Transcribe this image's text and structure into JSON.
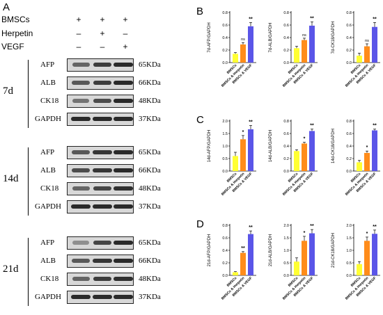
{
  "panel_labels": {
    "a": "A",
    "b": "B",
    "c": "C",
    "d": "D"
  },
  "treatments": [
    {
      "name": "BMSCs",
      "signs": [
        "+",
        "+",
        "+"
      ]
    },
    {
      "name": "Herpetin",
      "signs": [
        "–",
        "+",
        "–"
      ]
    },
    {
      "name": "VEGF",
      "signs": [
        "–",
        "–",
        "+"
      ]
    }
  ],
  "blot_groups": [
    {
      "day": "7d",
      "rows": [
        {
          "protein": "AFP",
          "kda": "65KDa",
          "intensity": [
            0.5,
            0.8,
            0.95
          ]
        },
        {
          "protein": "ALB",
          "kda": "66KDa",
          "intensity": [
            0.6,
            0.8,
            0.95
          ]
        },
        {
          "protein": "CK18",
          "kda": "48KDa",
          "intensity": [
            0.4,
            0.7,
            0.95
          ]
        },
        {
          "protein": "GAPDH",
          "kda": "37KDa",
          "intensity": [
            0.95,
            0.95,
            0.95
          ]
        }
      ]
    },
    {
      "day": "14d",
      "rows": [
        {
          "protein": "AFP",
          "kda": "65KDa",
          "intensity": [
            0.6,
            0.85,
            0.95
          ]
        },
        {
          "protein": "ALB",
          "kda": "66KDa",
          "intensity": [
            0.7,
            0.85,
            0.95
          ]
        },
        {
          "protein": "CK18",
          "kda": "48KDa",
          "intensity": [
            0.5,
            0.75,
            0.9
          ]
        },
        {
          "protein": "GAPDH",
          "kda": "37KDa",
          "intensity": [
            0.95,
            0.95,
            0.95
          ]
        }
      ]
    },
    {
      "day": "21d",
      "rows": [
        {
          "protein": "AFP",
          "kda": "65KDa",
          "intensity": [
            0.2,
            0.75,
            0.95
          ]
        },
        {
          "protein": "ALB",
          "kda": "66KDa",
          "intensity": [
            0.6,
            0.85,
            0.95
          ]
        },
        {
          "protein": "CK18",
          "kda": "48KDa",
          "intensity": [
            0.5,
            0.8,
            0.9
          ]
        },
        {
          "protein": "GAPDH",
          "kda": "37KDa",
          "intensity": [
            0.95,
            0.95,
            0.95
          ]
        }
      ]
    }
  ],
  "colors": {
    "BMSCs": "#ffff33",
    "BMSCs & Herpetin": "#ff8c1a",
    "BMSCs & VEGF": "#5a55e8"
  },
  "chart_data": [
    {
      "type": "bar",
      "panel": "B",
      "ylabel": "7d-AFP/GAPDH",
      "categories": [
        "BMSCs",
        "BMSCs & Herpetin",
        "BMSCs & VEGF"
      ],
      "values": [
        0.14,
        0.29,
        0.58
      ],
      "errors": [
        0.02,
        0.03,
        0.06
      ],
      "sig": [
        "",
        "ns",
        "**"
      ],
      "ylim": [
        0,
        0.8
      ],
      "yticks": [
        "0.0",
        "0.2",
        "0.4",
        "0.6",
        "0.8"
      ]
    },
    {
      "type": "bar",
      "panel": "B",
      "ylabel": "7d-ALB/GAPDH",
      "categories": [
        "BMSCs",
        "BMSCs & Herpetin",
        "BMSCs & VEGF"
      ],
      "values": [
        0.23,
        0.36,
        0.59
      ],
      "errors": [
        0.03,
        0.03,
        0.06
      ],
      "sig": [
        "",
        "ns",
        "**"
      ],
      "ylim": [
        0,
        0.8
      ],
      "yticks": [
        "0.0",
        "0.2",
        "0.4",
        "0.6",
        "0.8"
      ]
    },
    {
      "type": "bar",
      "panel": "B",
      "ylabel": "7d-CK18/GAPDH",
      "categories": [
        "BMSCs",
        "BMSCs & Herpetin",
        "BMSCs & VEGF"
      ],
      "values": [
        0.11,
        0.26,
        0.57
      ],
      "errors": [
        0.04,
        0.04,
        0.07
      ],
      "sig": [
        "",
        "ns",
        "**"
      ],
      "ylim": [
        0,
        0.8
      ],
      "yticks": [
        "0.0",
        "0.2",
        "0.4",
        "0.6",
        "0.8"
      ]
    },
    {
      "type": "bar",
      "panel": "C",
      "ylabel": "14d-AFP/GAPDH",
      "categories": [
        "BMSCs",
        "BMSCs & Herpetin",
        "BMSCs & VEGF"
      ],
      "values": [
        0.6,
        1.27,
        1.67
      ],
      "errors": [
        0.15,
        0.15,
        0.15
      ],
      "sig": [
        "",
        "*",
        "**"
      ],
      "ylim": [
        0,
        2.0
      ],
      "yticks": [
        "0.0",
        "0.5",
        "1.0",
        "1.5",
        "2.0"
      ]
    },
    {
      "type": "bar",
      "panel": "C",
      "ylabel": "14d-ALB/GAPDH",
      "categories": [
        "BMSCs",
        "BMSCs & Herpetin",
        "BMSCs & VEGF"
      ],
      "values": [
        0.32,
        0.44,
        0.64
      ],
      "errors": [
        0.02,
        0.02,
        0.03
      ],
      "sig": [
        "",
        "*",
        "**"
      ],
      "ylim": [
        0,
        0.8
      ],
      "yticks": [
        "0.0",
        "0.2",
        "0.4",
        "0.6",
        "0.8"
      ]
    },
    {
      "type": "bar",
      "panel": "C",
      "ylabel": "14d-CK18/GAPDH",
      "categories": [
        "BMSCs",
        "BMSCs & Herpetin",
        "BMSCs & VEGF"
      ],
      "values": [
        0.14,
        0.29,
        0.65
      ],
      "errors": [
        0.03,
        0.03,
        0.02
      ],
      "sig": [
        "",
        "*",
        "**"
      ],
      "ylim": [
        0,
        0.8
      ],
      "yticks": [
        "0.0",
        "0.2",
        "0.4",
        "0.6",
        "0.8"
      ]
    },
    {
      "type": "bar",
      "panel": "D",
      "ylabel": "21d-AFP/GAPDH",
      "categories": [
        "BMSCs",
        "BMSCs & Herpetin",
        "BMSCs & VEGF"
      ],
      "values": [
        0.05,
        0.36,
        0.66
      ],
      "errors": [
        0.01,
        0.02,
        0.05
      ],
      "sig": [
        "",
        "**",
        "**"
      ],
      "ylim": [
        0,
        0.8
      ],
      "yticks": [
        "0.0",
        "0.2",
        "0.4",
        "0.6",
        "0.8"
      ]
    },
    {
      "type": "bar",
      "panel": "D",
      "ylabel": "21d-ALB/GAPDH",
      "categories": [
        "BMSCs",
        "BMSCs & Herpetin",
        "BMSCs & VEGF"
      ],
      "values": [
        0.55,
        1.38,
        1.68
      ],
      "errors": [
        0.15,
        0.18,
        0.15
      ],
      "sig": [
        "",
        "*",
        "**"
      ],
      "ylim": [
        0,
        2.0
      ],
      "yticks": [
        "0.0",
        "0.5",
        "1.0",
        "1.5",
        "2.0"
      ]
    },
    {
      "type": "bar",
      "panel": "D",
      "ylabel": "21d-CK18/GAPDH",
      "categories": [
        "BMSCs",
        "BMSCs & Herpetin",
        "BMSCs & VEGF"
      ],
      "values": [
        0.45,
        1.38,
        1.66
      ],
      "errors": [
        0.1,
        0.15,
        0.15
      ],
      "sig": [
        "",
        "*",
        "**"
      ],
      "ylim": [
        0,
        2.0
      ],
      "yticks": [
        "0.0",
        "0.5",
        "1.0",
        "1.5",
        "2.0"
      ]
    }
  ]
}
